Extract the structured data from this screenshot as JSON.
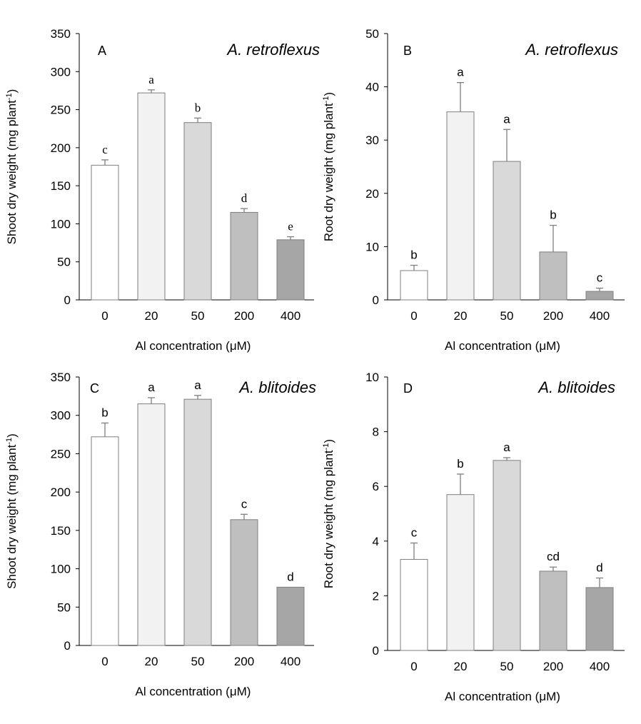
{
  "colors": {
    "bar_fills": [
      "#ffffff",
      "#f2f2f2",
      "#d9d9d9",
      "#bfbfbf",
      "#a6a6a6"
    ],
    "bar_stroke": "#7f7f7f",
    "axis": "#000000"
  },
  "chart_data": [
    {
      "type": "bar",
      "panel": "A",
      "species": "A. retroflexus",
      "xlabel": "Al concentration (μM)",
      "ylabel_main": "Shoot dry weight (mg plant",
      "ylabel_sup": "-1",
      "ylabel_close": ")",
      "ylim": [
        0,
        350
      ],
      "yticks": [
        "0",
        "50",
        "100",
        "150",
        "200",
        "250",
        "300",
        "350"
      ],
      "categories": [
        "0",
        "20",
        "50",
        "200",
        "400"
      ],
      "values": [
        177,
        272,
        233,
        115,
        79
      ],
      "errors": [
        7,
        4,
        6,
        5,
        4
      ],
      "letters": [
        "c",
        "a",
        "b",
        "d",
        "e"
      ],
      "letter_style": "serif"
    },
    {
      "type": "bar",
      "panel": "B",
      "species": "A. retroflexus",
      "xlabel": "Al concentration (μM)",
      "ylabel_main": "Root dry weight (mg plant",
      "ylabel_sup": "-1",
      "ylabel_close": ")",
      "ylim": [
        0,
        50
      ],
      "yticks": [
        "0",
        "10",
        "20",
        "30",
        "40",
        "50"
      ],
      "categories": [
        "0",
        "20",
        "50",
        "200",
        "400"
      ],
      "values": [
        5.5,
        35.3,
        26,
        9,
        1.6
      ],
      "errors": [
        1,
        5.5,
        6,
        5,
        0.6
      ],
      "letters": [
        "b",
        "a",
        "a",
        "b",
        "c"
      ],
      "letter_style": "sans"
    },
    {
      "type": "bar",
      "panel": "C",
      "species": "A. blitoides",
      "xlabel": "Al concentration (μM)",
      "ylabel_main": "Shoot dry weight (mg plant",
      "ylabel_sup": "-1",
      "ylabel_close": ")",
      "ylim": [
        0,
        350
      ],
      "yticks": [
        "0",
        "50",
        "100",
        "150",
        "200",
        "250",
        "300",
        "350"
      ],
      "categories": [
        "0",
        "20",
        "50",
        "200",
        "400"
      ],
      "values": [
        272,
        315,
        321,
        164,
        76
      ],
      "errors": [
        18,
        8,
        5,
        7,
        0
      ],
      "letters": [
        "b",
        "a",
        "a",
        "c",
        "d"
      ],
      "letter_style": "sans"
    },
    {
      "type": "bar",
      "panel": "D",
      "species": "A. blitoides",
      "xlabel": "Al concentration (μM)",
      "ylabel_main": "Root dry weight (mg plant",
      "ylabel_sup": "-1",
      "ylabel_close": ")",
      "ylim": [
        0,
        10
      ],
      "yticks": [
        "0",
        "2",
        "4",
        "6",
        "8",
        "10"
      ],
      "categories": [
        "0",
        "20",
        "50",
        "200",
        "400"
      ],
      "values": [
        3.33,
        5.7,
        6.95,
        2.9,
        2.3
      ],
      "errors": [
        0.6,
        0.75,
        0.1,
        0.15,
        0.35
      ],
      "letters": [
        "c",
        "b",
        "a",
        "cd",
        "d"
      ],
      "letter_style": "sans"
    }
  ]
}
